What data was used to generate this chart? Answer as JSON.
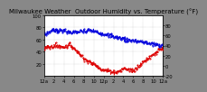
{
  "title": "Milwaukee Weather  Outdoor Humidity vs. Temperature (°F)",
  "bg_color": "#888888",
  "plot_bg": "#ffffff",
  "grid_color": "#aaaaaa",
  "blue_color": "#0000dd",
  "red_color": "#dd0000",
  "ylim_left": [
    0,
    100
  ],
  "ylim_right": [
    -20,
    100
  ],
  "xlim": [
    0,
    287
  ],
  "n_points": 288,
  "right_yticks": [
    80,
    60,
    40,
    20,
    0,
    -20
  ],
  "left_yticks": [
    20,
    40,
    60,
    80,
    100
  ],
  "xtick_labels": [
    "12a",
    "2",
    "4",
    "6",
    "8",
    "10",
    "12p",
    "2",
    "4",
    "6",
    "8",
    "10",
    "12a"
  ],
  "title_fontsize": 5.0,
  "tick_fontsize": 3.8,
  "linewidth": 0.7,
  "markersize": 1.0
}
